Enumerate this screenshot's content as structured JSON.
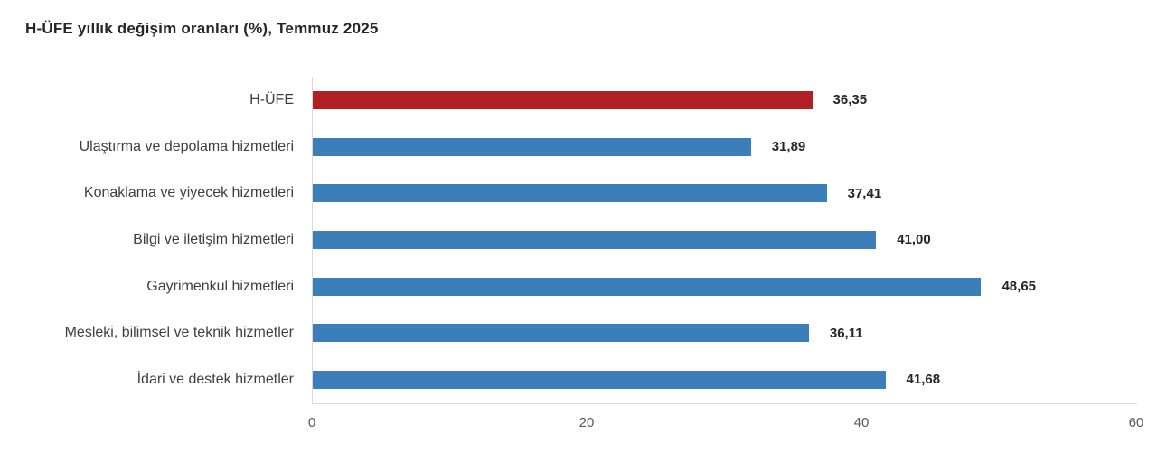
{
  "title": "H-ÜFE yıllık değişim oranları (%), Temmuz 2025",
  "chart_data": {
    "type": "bar",
    "orientation": "horizontal",
    "title": "H-ÜFE yıllık değişim oranları (%), Temmuz 2025",
    "categories": [
      "H-ÜFE",
      "Ulaştırma ve depolama hizmetleri",
      "Konaklama ve yiyecek hizmetleri",
      "Bilgi ve iletişim hizmetleri",
      "Gayrimenkul hizmetleri",
      "Mesleki, bilimsel ve teknik hizmetler",
      "İdari ve destek hizmetler"
    ],
    "values": [
      36.35,
      31.89,
      37.41,
      41.0,
      48.65,
      36.11,
      41.68
    ],
    "value_labels": [
      "36,35",
      "31,89",
      "37,41",
      "41,00",
      "48,65",
      "36,11",
      "41,68"
    ],
    "xlabel": "",
    "ylabel": "",
    "xlim": [
      0,
      60
    ],
    "x_ticks": [
      0,
      20,
      40,
      60
    ],
    "x_tick_labels": [
      "0",
      "20",
      "40",
      "60"
    ],
    "highlight_index": 0,
    "grid": false,
    "legend": false,
    "colors": {
      "highlight_bar": "#b02024",
      "base_bar": "#3c7eb9",
      "axis_line": "#d9d9d9",
      "tick_label": "#595959",
      "category_label": "#3f3f3f",
      "value_label": "#262626"
    }
  }
}
